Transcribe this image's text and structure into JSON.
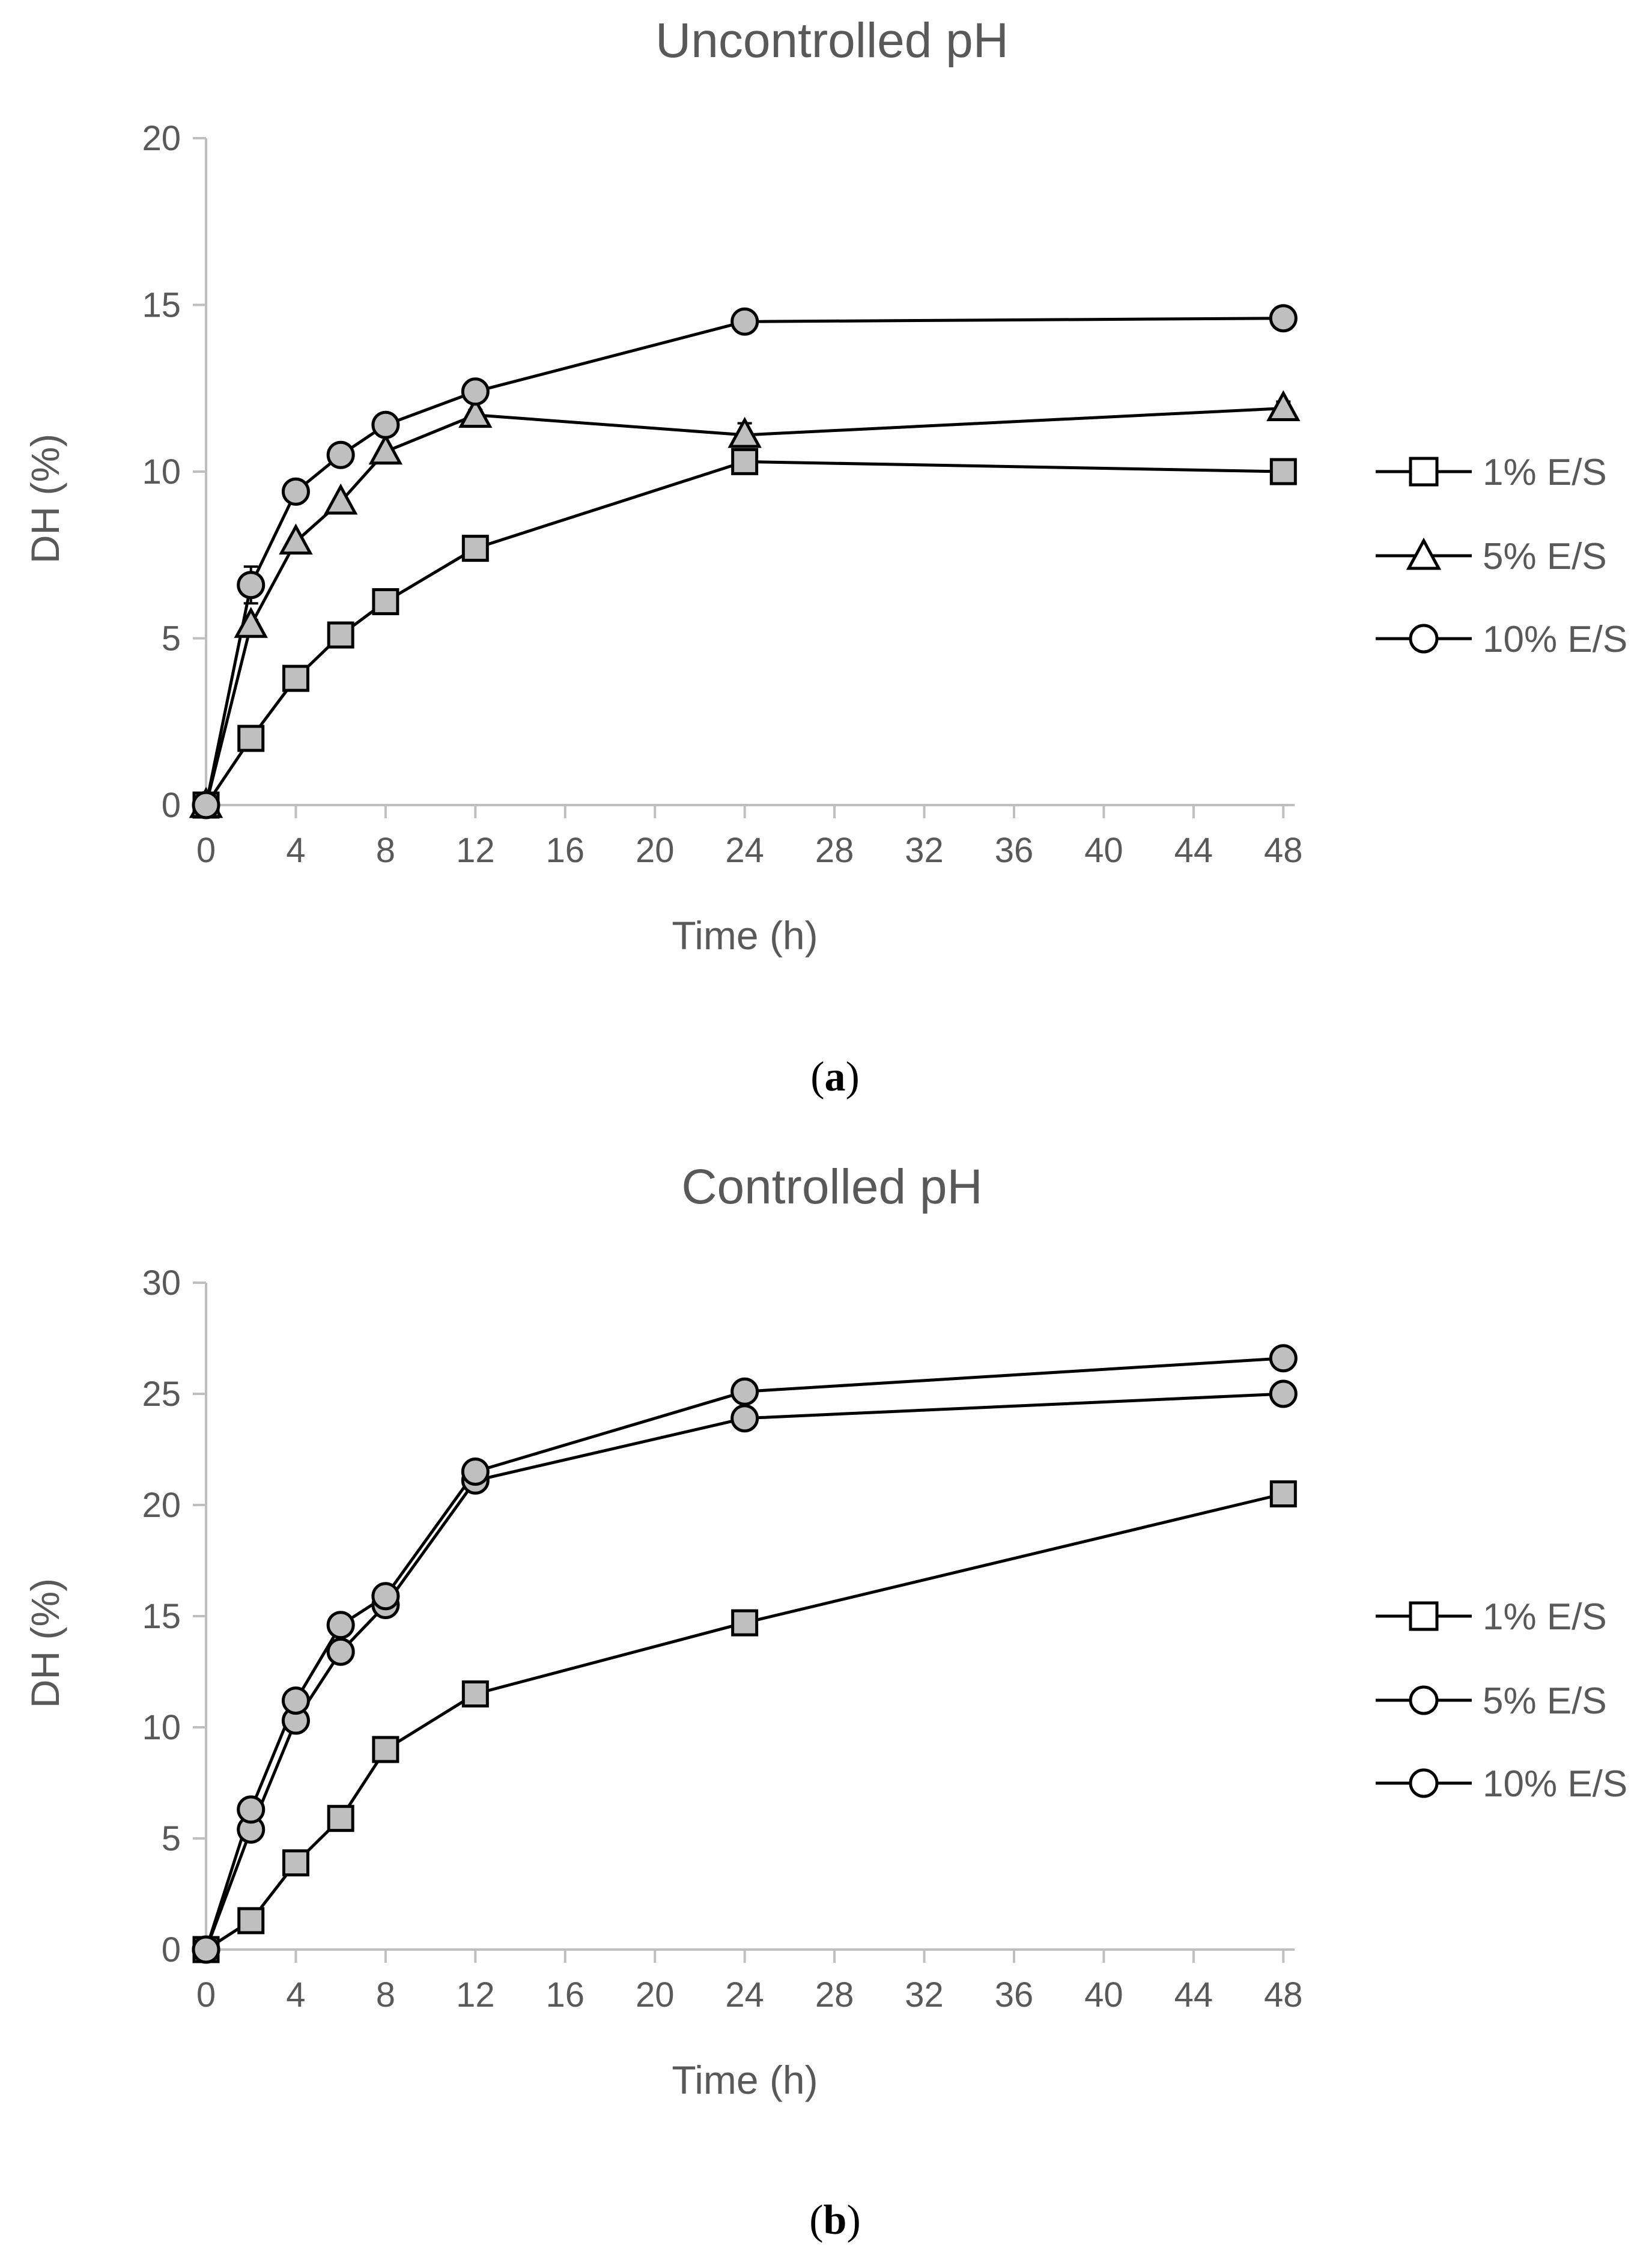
{
  "colors": {
    "text": "#595959",
    "axis": "#bfbfbf",
    "line": "#000000",
    "marker_fill": "#bfbfbf",
    "caption": "#000000"
  },
  "chart_data": [
    {
      "type": "line",
      "title": "Uncontrolled pH",
      "caption_label": "a",
      "xlabel": "Time (h)",
      "ylabel": "DH (%)",
      "xlim": [
        0,
        48.5
      ],
      "ylim": [
        0,
        20
      ],
      "xticks": [
        0,
        4,
        8,
        12,
        16,
        20,
        24,
        28,
        32,
        36,
        40,
        44,
        48
      ],
      "yticks": [
        0,
        5,
        10,
        15,
        20
      ],
      "legend_position": "right",
      "series": [
        {
          "name": "1% E/S",
          "marker": "square",
          "x": [
            0,
            2,
            4,
            6,
            8,
            12,
            24,
            48
          ],
          "values": [
            0,
            2.0,
            3.8,
            5.1,
            6.1,
            7.7,
            10.3,
            10.0
          ],
          "errors": [
            0,
            0.1,
            0.1,
            0.1,
            0.1,
            0.1,
            0.15,
            0.15
          ]
        },
        {
          "name": "5% E/S",
          "marker": "triangle",
          "x": [
            0,
            2,
            4,
            6,
            8,
            12,
            24,
            48
          ],
          "values": [
            0,
            5.4,
            7.9,
            9.1,
            10.6,
            11.7,
            11.1,
            11.9
          ],
          "errors": [
            0,
            0.15,
            0.1,
            0.1,
            0.1,
            0.15,
            0.35,
            0.2
          ]
        },
        {
          "name": "10% E/S",
          "marker": "circle",
          "x": [
            0,
            2,
            4,
            6,
            8,
            12,
            24,
            48
          ],
          "values": [
            0,
            6.6,
            9.4,
            10.5,
            11.4,
            12.4,
            14.5,
            14.6
          ],
          "errors": [
            0,
            0.55,
            0.1,
            0.1,
            0.1,
            0.1,
            0.1,
            0.1
          ]
        }
      ]
    },
    {
      "type": "line",
      "title": "Controlled pH",
      "caption_label": "b",
      "xlabel": "Time (h)",
      "ylabel": "DH (%)",
      "xlim": [
        0,
        48.5
      ],
      "ylim": [
        0,
        30
      ],
      "xticks": [
        0,
        4,
        8,
        12,
        16,
        20,
        24,
        28,
        32,
        36,
        40,
        44,
        48
      ],
      "yticks": [
        0,
        5,
        10,
        15,
        20,
        25,
        30
      ],
      "legend_position": "right",
      "series": [
        {
          "name": "1% E/S",
          "marker": "square",
          "x": [
            0,
            2,
            4,
            6,
            8,
            12,
            24,
            48
          ],
          "values": [
            0,
            1.3,
            3.9,
            5.9,
            9.0,
            11.5,
            14.7,
            20.5
          ],
          "errors": [
            0,
            0.1,
            0.1,
            0.1,
            0.1,
            0.15,
            0.15,
            0.15
          ]
        },
        {
          "name": "5% E/S",
          "marker": "circle",
          "x": [
            0,
            2,
            4,
            6,
            8,
            12,
            24,
            48
          ],
          "values": [
            0,
            5.4,
            10.3,
            13.4,
            15.5,
            21.1,
            23.9,
            25.0
          ],
          "errors": [
            0,
            0.15,
            0.15,
            0.15,
            0.15,
            0.15,
            0.15,
            0.15
          ]
        },
        {
          "name": "10% E/S",
          "marker": "circle",
          "x": [
            0,
            2,
            4,
            6,
            8,
            12,
            24,
            48
          ],
          "values": [
            0,
            6.3,
            11.2,
            14.6,
            15.9,
            21.5,
            25.1,
            26.6
          ],
          "errors": [
            0,
            0.15,
            0.15,
            0.15,
            0.15,
            0.15,
            0.15,
            0.15
          ]
        }
      ]
    }
  ]
}
